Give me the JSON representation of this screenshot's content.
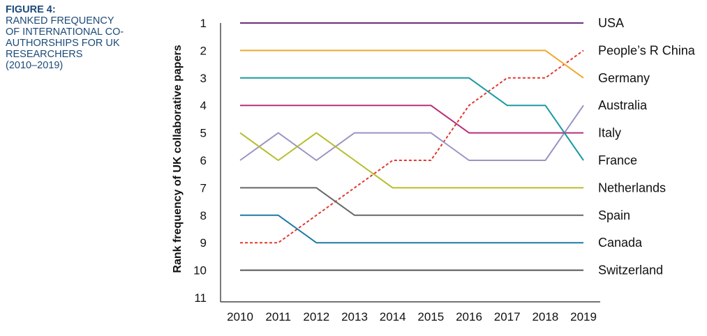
{
  "figure": {
    "label": "FIGURE 4:",
    "title": "RANKED FREQUENCY\nOF INTERNATIONAL CO-\nAUTHORSHIPS FOR UK\nRESEARCHERS\n(2010–2019)"
  },
  "chart_data": {
    "type": "line",
    "ylabel": "Rank frequency of UK collaborative papers",
    "xlabel": "",
    "x": [
      "2010",
      "2011",
      "2012",
      "2013",
      "2014",
      "2015",
      "2016",
      "2017",
      "2018",
      "2019"
    ],
    "y_ticks": [
      "1",
      "2",
      "3",
      "4",
      "5",
      "6",
      "7",
      "8",
      "9",
      "10",
      "11"
    ],
    "ylim": [
      1,
      11
    ],
    "y_inverted": true,
    "grid": false,
    "legend": "right-end labels",
    "series": [
      {
        "name": "USA",
        "color": "#6b2c7e",
        "dashed": false,
        "values": [
          1,
          1,
          1,
          1,
          1,
          1,
          1,
          1,
          1,
          1
        ]
      },
      {
        "name": "People’s R China",
        "color": "#e03a2f",
        "dashed": true,
        "values": [
          9,
          9,
          8,
          7,
          6,
          6,
          4,
          3,
          3,
          2
        ]
      },
      {
        "name": "Germany",
        "color": "#f0a830",
        "dashed": false,
        "values": [
          2,
          2,
          2,
          2,
          2,
          2,
          2,
          2,
          2,
          3
        ]
      },
      {
        "name": "Australia",
        "color": "#9b93c4",
        "dashed": false,
        "values": [
          6,
          5,
          6,
          5,
          5,
          5,
          6,
          6,
          6,
          4
        ]
      },
      {
        "name": "Italy",
        "color": "#b5307a",
        "dashed": false,
        "values": [
          4,
          4,
          4,
          4,
          4,
          4,
          5,
          5,
          5,
          5
        ]
      },
      {
        "name": "France",
        "color": "#1a9aa0",
        "dashed": false,
        "values": [
          3,
          3,
          3,
          3,
          3,
          3,
          3,
          4,
          4,
          6
        ]
      },
      {
        "name": "Netherlands",
        "color": "#b6bd2a",
        "dashed": false,
        "values": [
          5,
          6,
          5,
          6,
          7,
          7,
          7,
          7,
          7,
          7
        ]
      },
      {
        "name": "Spain",
        "color": "#666666",
        "dashed": false,
        "values": [
          7,
          7,
          7,
          8,
          8,
          8,
          8,
          8,
          8,
          8
        ]
      },
      {
        "name": "Canada",
        "color": "#1f7aa6",
        "dashed": false,
        "values": [
          8,
          8,
          9,
          9,
          9,
          9,
          9,
          9,
          9,
          9
        ]
      },
      {
        "name": "Switzerland",
        "color": "#555555",
        "dashed": false,
        "values": [
          10,
          10,
          10,
          10,
          10,
          10,
          10,
          10,
          10,
          10
        ]
      }
    ]
  }
}
